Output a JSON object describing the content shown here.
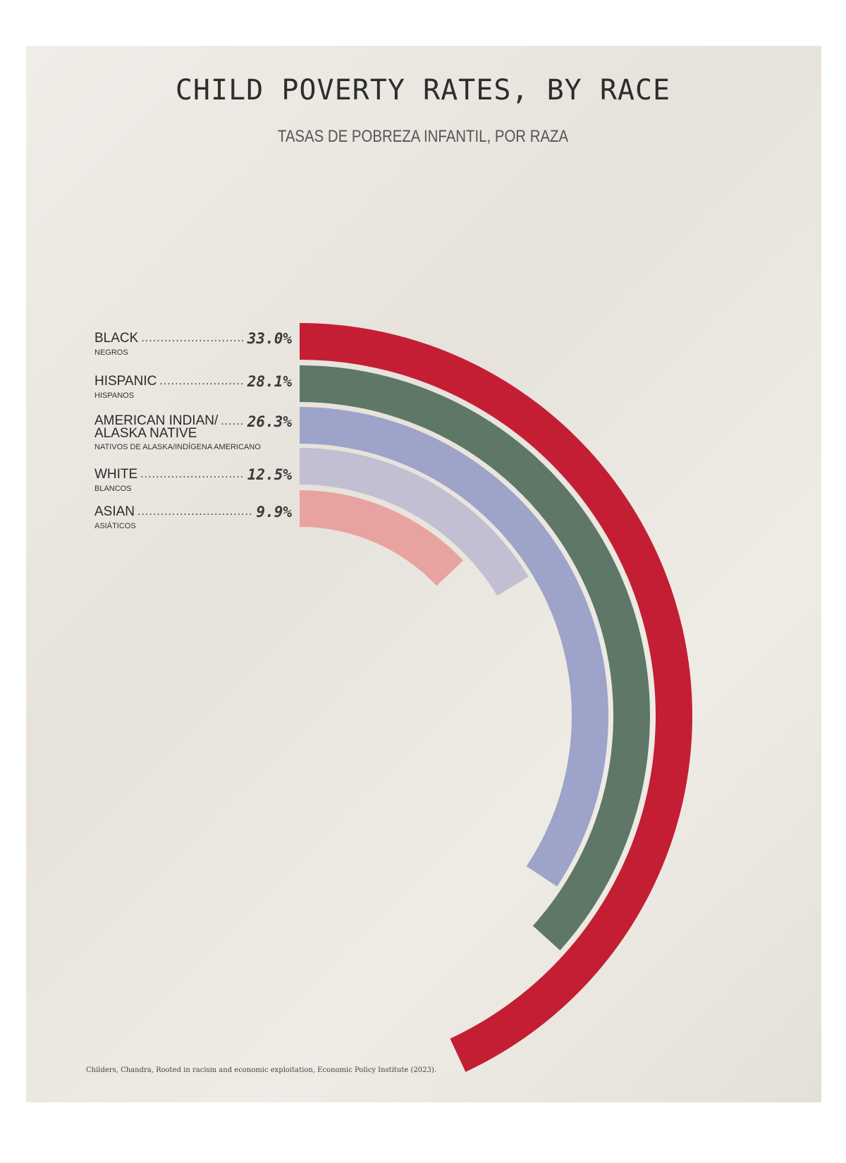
{
  "chart_data": {
    "type": "radial-bar",
    "title": "CHILD POVERTY RATES, BY RACE",
    "subtitle": "TASAS DE POBREZA INFANTIL, POR RAZA",
    "unit": "%",
    "max_value": 33.0,
    "max_angle_degrees": 155,
    "categories": [
      {
        "label": "BLACK",
        "sublabel": "NEGROS",
        "value": 33.0,
        "value_label": "33.0%",
        "color": "#c41e35"
      },
      {
        "label": "HISPANIC",
        "sublabel": "HISPANOS",
        "value": 28.1,
        "value_label": "28.1%",
        "color": "#5e7766"
      },
      {
        "label": "AMERICAN INDIAN/\nALASKA NATIVE",
        "sublabel": "NATIVOS DE ALASKA/INDÍGENA AMERICANO",
        "value": 26.3,
        "value_label": "26.3%",
        "color": "#9da3c9"
      },
      {
        "label": "WHITE",
        "sublabel": "BLANCOS",
        "value": 12.5,
        "value_label": "12.5%",
        "color": "#c2bfd2"
      },
      {
        "label": "ASIAN",
        "sublabel": "ASIÁTICOS",
        "value": 9.9,
        "value_label": "9.9%",
        "color": "#e8a3a1"
      }
    ]
  },
  "source": "Childers, Chandra, Rooted in racism and economic exploitation, Economic Policy Institute (2023)."
}
